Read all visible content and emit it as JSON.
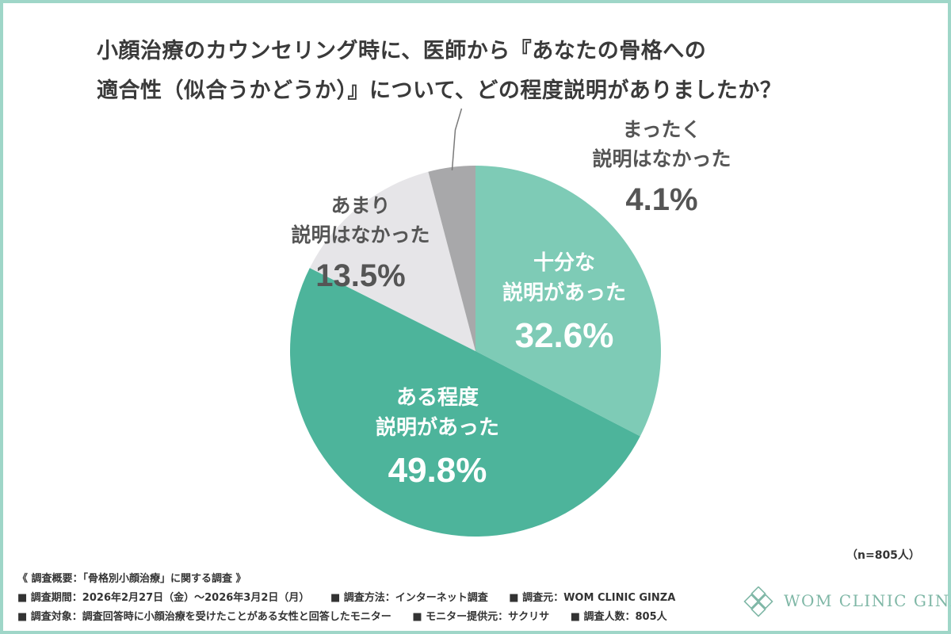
{
  "title": {
    "line1": "小顔治療のカウンセリング時に、医師から『あなたの骨格への",
    "line2": "適合性（似合うかどうか）』について、どの程度説明がありましたか？"
  },
  "chart_data": {
    "type": "pie",
    "start": "12 o'clock",
    "direction": "clockwise",
    "slices": [
      {
        "label_lines": [
          "十分な",
          "説明があった"
        ],
        "value": 32.6,
        "pct_label": "32.6%",
        "color": "#7ecbb6",
        "text_color": "#ffffff",
        "label_placement": "inside"
      },
      {
        "label_lines": [
          "ある程度",
          "説明があった"
        ],
        "value": 49.8,
        "pct_label": "49.8%",
        "color": "#4db49b",
        "text_color": "#ffffff",
        "label_placement": "inside"
      },
      {
        "label_lines": [
          "あまり",
          "説明はなかった"
        ],
        "value": 13.5,
        "pct_label": "13.5%",
        "color": "#e6e5e8",
        "text_color": "#555555",
        "label_placement": "inside"
      },
      {
        "label_lines": [
          "まったく",
          "説明はなかった"
        ],
        "value": 4.1,
        "pct_label": "4.1%",
        "color": "#a8a8aa",
        "text_color": "#555555",
        "label_placement": "outside-with-leader"
      }
    ]
  },
  "sample_note": "（n=805人）",
  "footer": {
    "head": "《 調査概要：「骨格別小顔治療」に関する調査 》",
    "row1": [
      "■ 調査期間：2026年2月27日（金）〜2026年3月2日（月）",
      "■ 調査方法：インターネット調査",
      "■ 調査元：WOM CLINIC GINZA"
    ],
    "row2": [
      "■ 調査対象：調査回答時に小顔治療を受けたことがある女性と回答したモニター",
      "■ モニター提供元：サクリサ",
      "■ 調査人数：805人"
    ]
  },
  "logo": {
    "text": "WOM CLINIC GINZA",
    "color": "#7fb7a6"
  }
}
